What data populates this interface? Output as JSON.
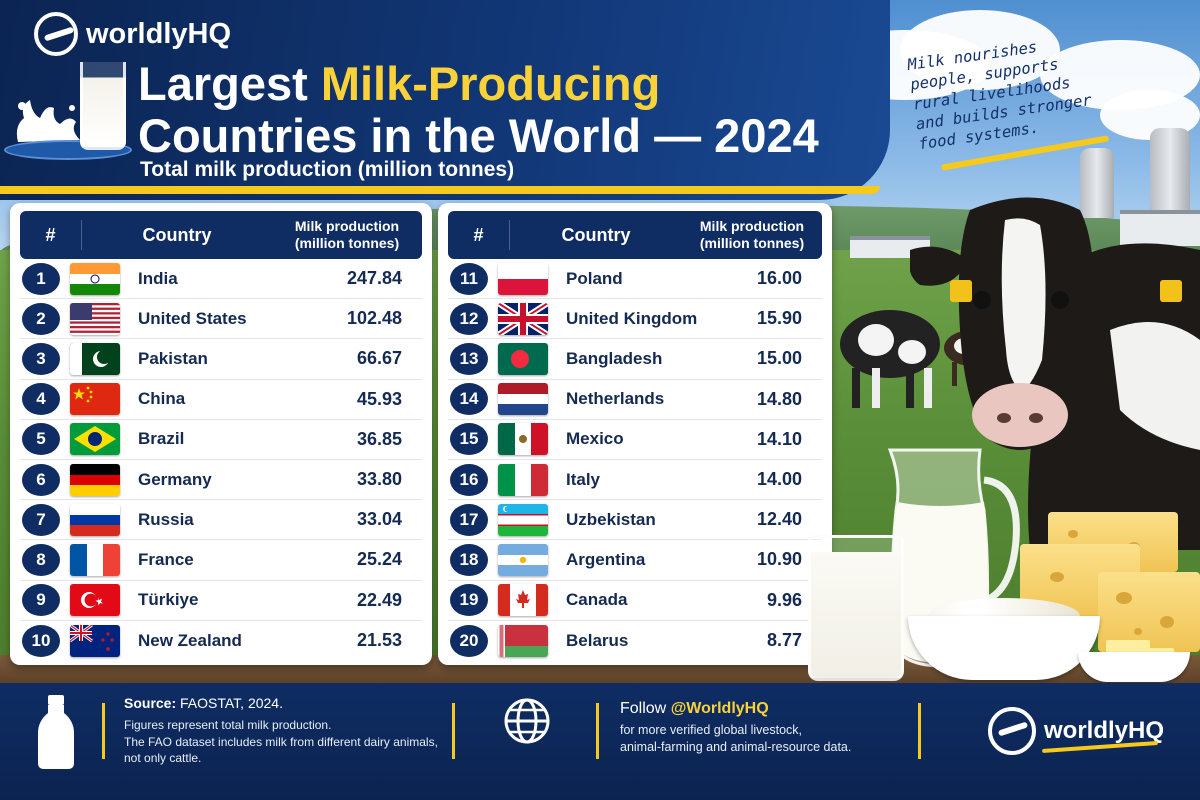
{
  "brand": {
    "name": "worldlyHQ",
    "logo_icon": "worldlyhq-logo-icon"
  },
  "header": {
    "title_part1": "Largest ",
    "title_accent": "Milk-Producing",
    "title_line2": "Countries in the World — 2024",
    "subtitle": "Total milk production (million tonnes)",
    "accent_color": "#f9d23a",
    "navy_color": "#0f2d63"
  },
  "quote": {
    "line1": "Milk nourishes",
    "line2": "people, supports",
    "line3": "rural livelihoods",
    "line4": "and builds stronger",
    "line5": "food systems."
  },
  "table": {
    "col_rank": "#",
    "col_country": "Country",
    "col_prod_line1": "Milk production",
    "col_prod_line2": "(million tonnes)",
    "left_rows": [
      {
        "rank": "1",
        "country": "India",
        "value": "247.84",
        "flag": "india-flag-icon"
      },
      {
        "rank": "2",
        "country": "United States",
        "value": "102.48",
        "flag": "usa-flag-icon"
      },
      {
        "rank": "3",
        "country": "Pakistan",
        "value": "66.67",
        "flag": "pakistan-flag-icon"
      },
      {
        "rank": "4",
        "country": "China",
        "value": "45.93",
        "flag": "china-flag-icon"
      },
      {
        "rank": "5",
        "country": "Brazil",
        "value": "36.85",
        "flag": "brazil-flag-icon"
      },
      {
        "rank": "6",
        "country": "Germany",
        "value": "33.80",
        "flag": "germany-flag-icon"
      },
      {
        "rank": "7",
        "country": "Russia",
        "value": "33.04",
        "flag": "russia-flag-icon"
      },
      {
        "rank": "8",
        "country": "France",
        "value": "25.24",
        "flag": "france-flag-icon"
      },
      {
        "rank": "9",
        "country": "Türkiye",
        "value": "22.49",
        "flag": "turkiye-flag-icon"
      },
      {
        "rank": "10",
        "country": "New Zealand",
        "value": "21.53",
        "flag": "new-zealand-flag-icon"
      }
    ],
    "right_rows": [
      {
        "rank": "11",
        "country": "Poland",
        "value": "16.00",
        "flag": "poland-flag-icon"
      },
      {
        "rank": "12",
        "country": "United Kingdom",
        "value": "15.90",
        "flag": "uk-flag-icon"
      },
      {
        "rank": "13",
        "country": "Bangladesh",
        "value": "15.00",
        "flag": "bangladesh-flag-icon"
      },
      {
        "rank": "14",
        "country": "Netherlands",
        "value": "14.80",
        "flag": "netherlands-flag-icon"
      },
      {
        "rank": "15",
        "country": "Mexico",
        "value": "14.10",
        "flag": "mexico-flag-icon"
      },
      {
        "rank": "16",
        "country": "Italy",
        "value": "14.00",
        "flag": "italy-flag-icon"
      },
      {
        "rank": "17",
        "country": "Uzbekistan",
        "value": "12.40",
        "flag": "uzbekistan-flag-icon"
      },
      {
        "rank": "18",
        "country": "Argentina",
        "value": "10.90",
        "flag": "argentina-flag-icon"
      },
      {
        "rank": "19",
        "country": "Canada",
        "value": "9.96",
        "flag": "canada-flag-icon"
      },
      {
        "rank": "20",
        "country": "Belarus",
        "value": "8.77",
        "flag": "belarus-flag-icon"
      }
    ]
  },
  "footer": {
    "source_label": "Source:",
    "source_value": " FAOSTAT, 2024.",
    "note1": "Figures represent total milk production.",
    "note2": "The FAO dataset includes milk from different dairy animals,",
    "note3": "not only cattle.",
    "follow_prefix": "Follow ",
    "follow_handle": "@WorldlyHQ",
    "follow_sub1": "for more verified global livestock,",
    "follow_sub2": "animal-farming and animal-resource data.",
    "bottle_icon": "milk-bottle-icon",
    "globe_icon": "globe-icon"
  }
}
